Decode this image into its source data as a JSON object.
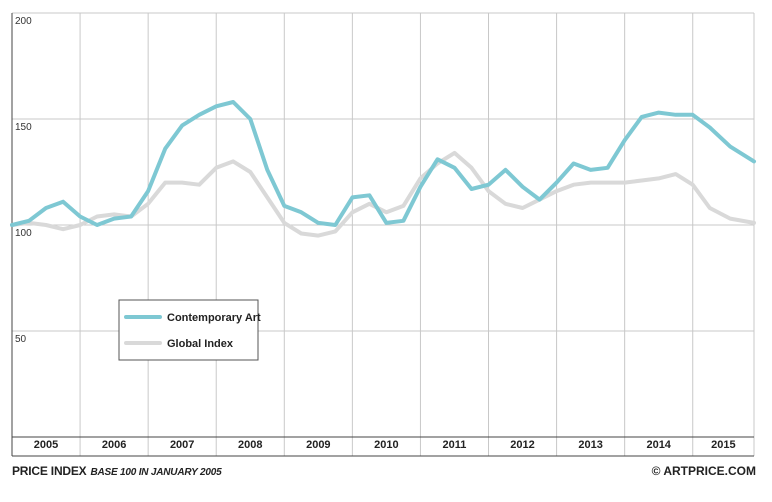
{
  "footer": {
    "title": "PRICE INDEX",
    "subtitle": "BASE 100 IN JANUARY 2005",
    "credit": "© ARTPRICE.COM"
  },
  "colors": {
    "contemporary": "#7ec8d3",
    "global": "#d9d9d9",
    "grid": "#c8c8c8",
    "axis": "#444444"
  },
  "chart_data": {
    "type": "line",
    "title": "",
    "xlabel": "",
    "ylabel": "",
    "ylim": [
      0,
      200
    ],
    "xlim": [
      2005.0,
      2015.9
    ],
    "yticks": [
      50,
      100,
      150,
      200
    ],
    "year_labels": [
      "2005",
      "2006",
      "2007",
      "2008",
      "2009",
      "2010",
      "2011",
      "2012",
      "2013",
      "2014",
      "2015"
    ],
    "grid": true,
    "legend_position": "bottom-left",
    "series": [
      {
        "name": "Contemporary Art",
        "color": "#7ec8d3",
        "x": [
          2005.0,
          2005.25,
          2005.5,
          2005.75,
          2006.0,
          2006.25,
          2006.5,
          2006.75,
          2007.0,
          2007.25,
          2007.5,
          2007.75,
          2008.0,
          2008.25,
          2008.5,
          2008.75,
          2009.0,
          2009.25,
          2009.5,
          2009.75,
          2010.0,
          2010.25,
          2010.5,
          2010.75,
          2011.0,
          2011.25,
          2011.5,
          2011.75,
          2012.0,
          2012.25,
          2012.5,
          2012.75,
          2013.0,
          2013.25,
          2013.5,
          2013.75,
          2014.0,
          2014.25,
          2014.5,
          2014.75,
          2015.0,
          2015.25,
          2015.55,
          2015.9
        ],
        "values": [
          100,
          102,
          108,
          111,
          104,
          100,
          103,
          104,
          116,
          136,
          147,
          152,
          156,
          158,
          150,
          126,
          109,
          106,
          101,
          100,
          113,
          114,
          101,
          102,
          118,
          131,
          127,
          117,
          119,
          126,
          118,
          112,
          120,
          129,
          126,
          127,
          140,
          151,
          153,
          152,
          152,
          146,
          137,
          130
        ]
      },
      {
        "name": "Global Index",
        "color": "#d9d9d9",
        "x": [
          2005.0,
          2005.25,
          2005.5,
          2005.75,
          2006.0,
          2006.25,
          2006.5,
          2006.75,
          2007.0,
          2007.25,
          2007.5,
          2007.75,
          2008.0,
          2008.25,
          2008.5,
          2008.75,
          2009.0,
          2009.25,
          2009.5,
          2009.75,
          2010.0,
          2010.25,
          2010.5,
          2010.75,
          2011.0,
          2011.25,
          2011.5,
          2011.75,
          2012.0,
          2012.25,
          2012.5,
          2012.75,
          2013.0,
          2013.25,
          2013.5,
          2013.75,
          2014.0,
          2014.25,
          2014.5,
          2014.75,
          2015.0,
          2015.25,
          2015.55,
          2015.9
        ],
        "values": [
          100,
          101,
          100,
          98,
          100,
          104,
          105,
          104,
          110,
          120,
          120,
          119,
          127,
          130,
          125,
          113,
          101,
          96,
          95,
          97,
          106,
          110,
          106,
          109,
          122,
          129,
          134,
          127,
          116,
          110,
          108,
          112,
          116,
          119,
          120,
          120,
          120,
          121,
          122,
          124,
          119,
          108,
          103,
          101
        ]
      }
    ]
  }
}
